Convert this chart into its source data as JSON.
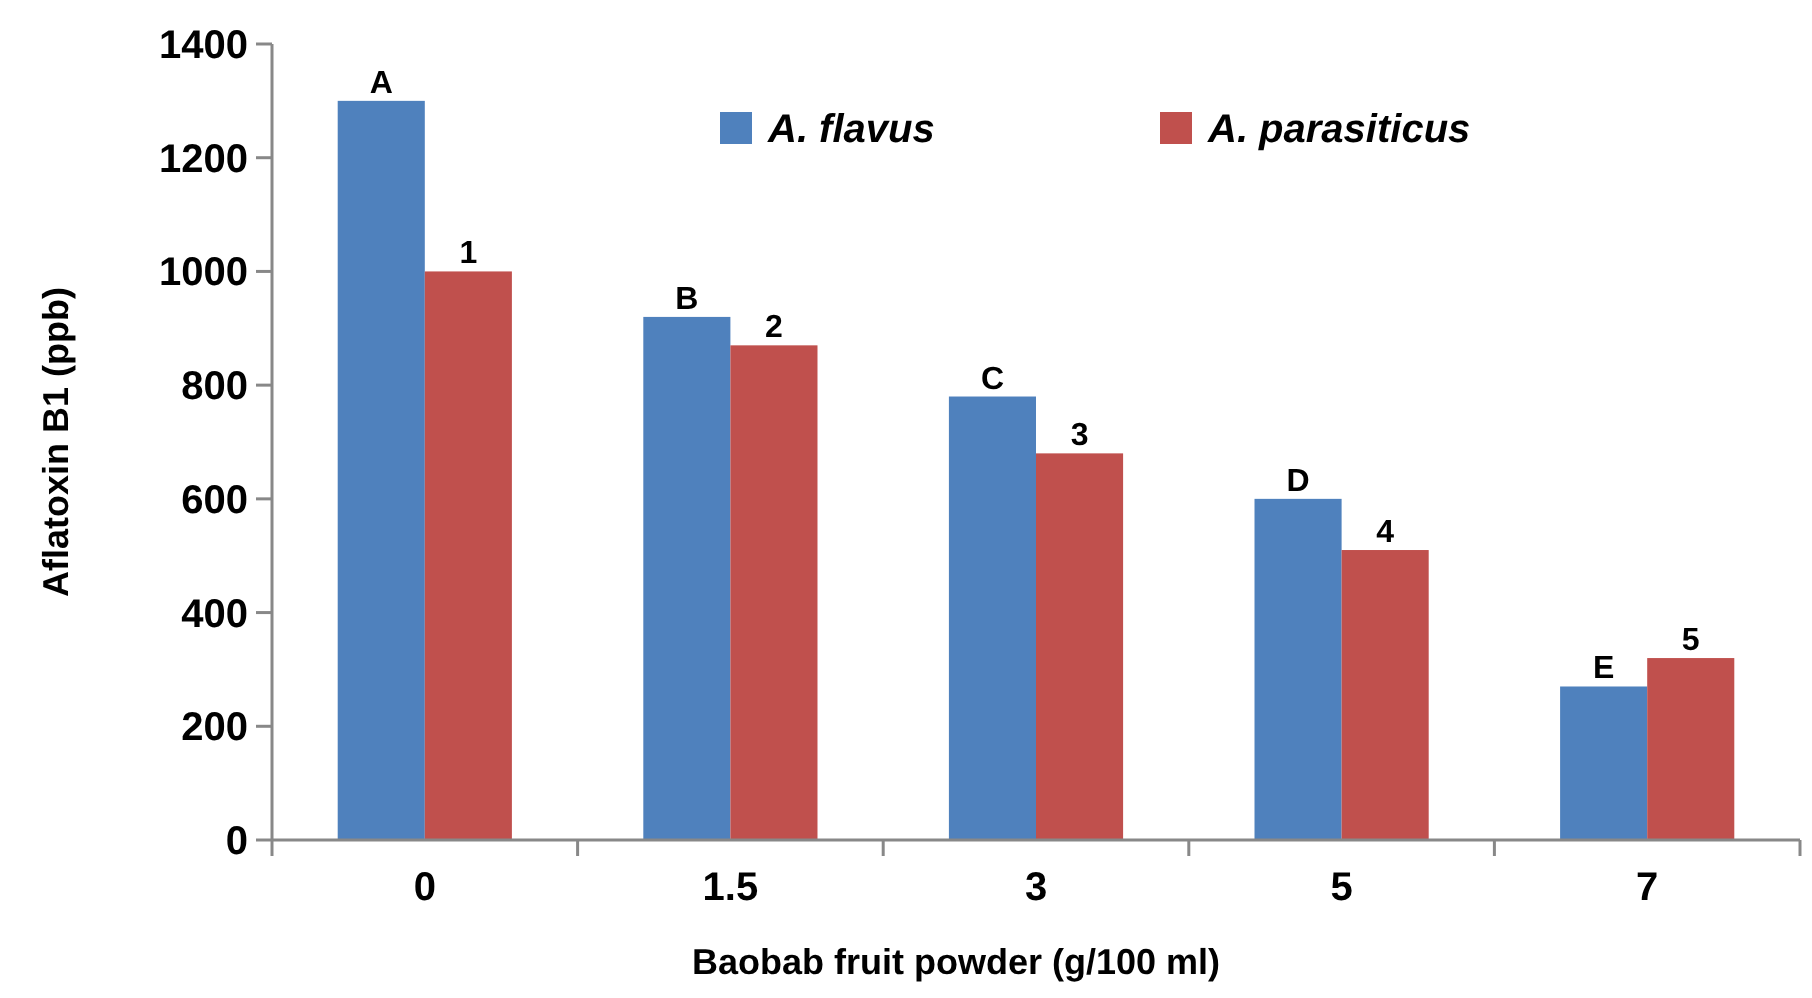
{
  "chart_data": {
    "type": "bar",
    "xlabel": "Baobab  fruit powder (g/100 ml)",
    "ylabel": "Aflatoxin B1 (ppb)",
    "categories": [
      "0",
      "1.5",
      "3",
      "5",
      "7"
    ],
    "series": [
      {
        "name": "A. flavus",
        "color": "#4f81bd",
        "values": [
          1300,
          920,
          780,
          600,
          270
        ]
      },
      {
        "name": "A. parasiticus",
        "color": "#c0504d",
        "values": [
          1000,
          870,
          680,
          510,
          320
        ]
      }
    ],
    "annotations": [
      {
        "text": "A",
        "x": "0",
        "y": 1300
      },
      {
        "text": "B",
        "x": "1.5",
        "y": 920
      },
      {
        "text": "C",
        "x": "3",
        "y": 780
      },
      {
        "text": "D",
        "x": "5",
        "y": 600
      },
      {
        "text": "E",
        "x": "7",
        "y": 270
      },
      {
        "text": "1",
        "x": "0",
        "y": 1000
      },
      {
        "text": "2",
        "x": "1.5",
        "y": 870
      },
      {
        "text": "3",
        "x": "3",
        "y": 680
      },
      {
        "text": "4",
        "x": "5",
        "y": 510
      },
      {
        "text": "5",
        "x": "7",
        "y": 320
      }
    ],
    "ylim": [
      0,
      1400
    ],
    "yticks": [
      0,
      200,
      400,
      600,
      800,
      1000,
      1200,
      1400
    ],
    "grid": false,
    "legend": "top right"
  }
}
